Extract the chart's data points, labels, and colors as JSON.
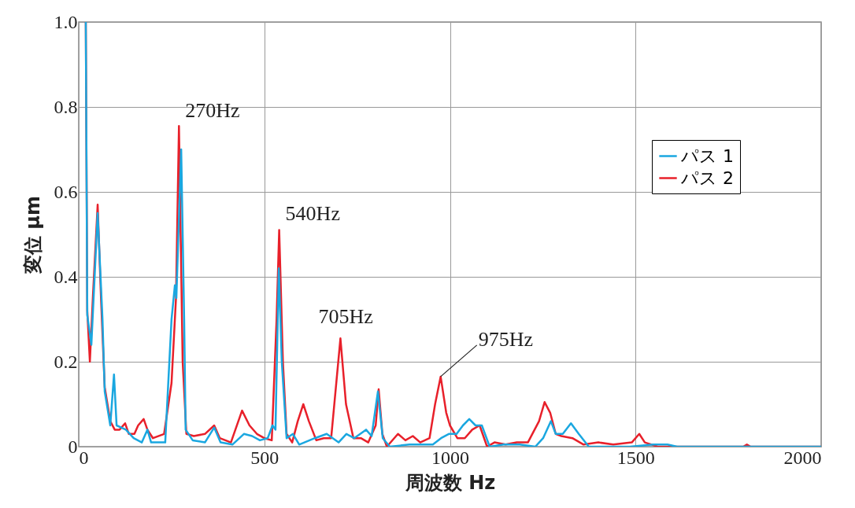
{
  "chart_data": {
    "type": "line",
    "xlabel": "周波数 Hz",
    "ylabel": "変位 μm",
    "xlim": [
      0,
      2000
    ],
    "ylim": [
      0,
      1
    ],
    "xticks": [
      0,
      500,
      1000,
      1500,
      2000
    ],
    "yticks": [
      0,
      0.2,
      0.4,
      0.6,
      0.8,
      {
        "value": 1,
        "label": "1.0"
      }
    ],
    "grid": true,
    "legend": "right",
    "line_style": "solid",
    "annotations": [
      {
        "text": "270Hz",
        "x": 270,
        "y": 0.755
      },
      {
        "text": "540Hz",
        "x": 540,
        "y": 0.51
      },
      {
        "text": "705Hz",
        "x": 705,
        "y": 0.255
      },
      {
        "text": "975Hz",
        "x": 975,
        "y": 0.165
      }
    ],
    "series": [
      {
        "name": "パス 1",
        "color": "#1aa7e0",
        "x": [
          19,
          23,
          34,
          51,
          64,
          70,
          85,
          95,
          102,
          127,
          148,
          170,
          185,
          195,
          233,
          250,
          259,
          263,
          276,
          284,
          288,
          307,
          340,
          365,
          382,
          414,
          445,
          467,
          488,
          509,
          522,
          530,
          539,
          547,
          560,
          577,
          594,
          636,
          668,
          700,
          721,
          742,
          774,
          789,
          806,
          819,
          838,
          891,
          954,
          976,
          997,
          1018,
          1035,
          1052,
          1069,
          1086,
          1107,
          1145,
          1188,
          1230,
          1251,
          1272,
          1285,
          1304,
          1326,
          1347,
          1374,
          1485,
          1548,
          1586,
          1612,
          2000
        ],
        "values": [
          1.0,
          0.31,
          0.24,
          0.55,
          0.3,
          0.13,
          0.05,
          0.17,
          0.05,
          0.04,
          0.02,
          0.01,
          0.04,
          0.01,
          0.01,
          0.3,
          0.38,
          0.35,
          0.7,
          0.3,
          0.04,
          0.015,
          0.01,
          0.045,
          0.01,
          0.005,
          0.03,
          0.025,
          0.015,
          0.02,
          0.05,
          0.04,
          0.42,
          0.2,
          0.02,
          0.03,
          0.005,
          0.02,
          0.03,
          0.01,
          0.03,
          0.02,
          0.04,
          0.025,
          0.13,
          0.02,
          0,
          0.005,
          0.005,
          0.02,
          0.03,
          0.03,
          0.05,
          0.065,
          0.05,
          0.05,
          0,
          0.005,
          0.005,
          0,
          0.02,
          0.06,
          0.03,
          0.03,
          0.055,
          0.03,
          0,
          0,
          0.005,
          0.005,
          0,
          0
        ]
      },
      {
        "name": "パス 2",
        "color": "#e8202a",
        "x": [
          19,
          23,
          30,
          38,
          51,
          60,
          70,
          85,
          97,
          110,
          125,
          135,
          150,
          160,
          175,
          185,
          200,
          230,
          250,
          262,
          270,
          280,
          290,
          310,
          340,
          365,
          380,
          410,
          440,
          460,
          480,
          500,
          520,
          533,
          540,
          550,
          560,
          575,
          590,
          605,
          620,
          640,
          660,
          680,
          705,
          720,
          740,
          760,
          780,
          800,
          808,
          818,
          830,
          860,
          880,
          900,
          920,
          945,
          960,
          975,
          990,
          1000,
          1020,
          1040,
          1060,
          1080,
          1100,
          1120,
          1150,
          1180,
          1210,
          1240,
          1255,
          1270,
          1285,
          1300,
          1330,
          1360,
          1400,
          1440,
          1490,
          1510,
          1525,
          1560,
          1620,
          1790,
          1800,
          1810,
          2000
        ],
        "values": [
          1.0,
          0.32,
          0.2,
          0.35,
          0.57,
          0.35,
          0.14,
          0.06,
          0.04,
          0.04,
          0.055,
          0.03,
          0.03,
          0.05,
          0.065,
          0.04,
          0.02,
          0.03,
          0.15,
          0.35,
          0.755,
          0.2,
          0.03,
          0.025,
          0.03,
          0.05,
          0.02,
          0.01,
          0.085,
          0.05,
          0.03,
          0.02,
          0.015,
          0.3,
          0.51,
          0.2,
          0.03,
          0.01,
          0.06,
          0.1,
          0.06,
          0.015,
          0.02,
          0.02,
          0.255,
          0.1,
          0.02,
          0.02,
          0.01,
          0.05,
          0.135,
          0.03,
          0,
          0.03,
          0.015,
          0.025,
          0.01,
          0.02,
          0.1,
          0.165,
          0.08,
          0.05,
          0.02,
          0.02,
          0.04,
          0.05,
          0,
          0.01,
          0.005,
          0.01,
          0.01,
          0.06,
          0.105,
          0.08,
          0.03,
          0.025,
          0.02,
          0.005,
          0.01,
          0.005,
          0.01,
          0.03,
          0.01,
          0,
          0,
          0,
          0.005,
          0,
          0
        ]
      }
    ]
  }
}
